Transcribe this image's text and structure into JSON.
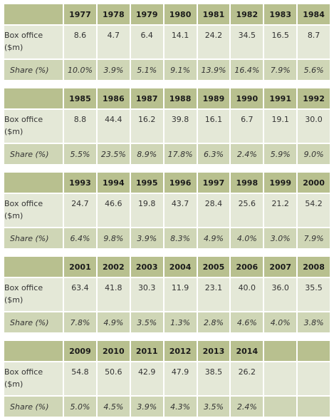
{
  "row_labels": {
    "box_office": "Box office ($m)",
    "share": "Share (%)"
  },
  "tables": [
    {
      "years": [
        "1977",
        "1978",
        "1979",
        "1980",
        "1981",
        "1982",
        "1983",
        "1984"
      ],
      "box_office": [
        "8.6",
        "4.7",
        "6.4",
        "14.1",
        "24.2",
        "34.5",
        "16.5",
        "8.7"
      ],
      "share": [
        "10.0%",
        "3.9%",
        "5.1%",
        "9.1%",
        "13.9%",
        "16.4%",
        "7.9%",
        "5.6%"
      ]
    },
    {
      "years": [
        "1985",
        "1986",
        "1987",
        "1988",
        "1989",
        "1990",
        "1991",
        "1992"
      ],
      "box_office": [
        "8.8",
        "44.4",
        "16.2",
        "39.8",
        "16.1",
        "6.7",
        "19.1",
        "30.0"
      ],
      "share": [
        "5.5%",
        "23.5%",
        "8.9%",
        "17.8%",
        "6.3%",
        "2.4%",
        "5.9%",
        "9.0%"
      ]
    },
    {
      "years": [
        "1993",
        "1994",
        "1995",
        "1996",
        "1997",
        "1998",
        "1999",
        "2000"
      ],
      "box_office": [
        "24.7",
        "46.6",
        "19.8",
        "43.7",
        "28.4",
        "25.6",
        "21.2",
        "54.2"
      ],
      "share": [
        "6.4%",
        "9.8%",
        "3.9%",
        "8.3%",
        "4.9%",
        "4.0%",
        "3.0%",
        "7.9%"
      ]
    },
    {
      "years": [
        "2001",
        "2002",
        "2003",
        "2004",
        "2005",
        "2006",
        "2007",
        "2008"
      ],
      "box_office": [
        "63.4",
        "41.8",
        "30.3",
        "11.9",
        "23.1",
        "40.0",
        "36.0",
        "35.5"
      ],
      "share": [
        "7.8%",
        "4.9%",
        "3.5%",
        "1.3%",
        "2.8%",
        "4.6%",
        "4.0%",
        "3.8%"
      ]
    },
    {
      "years": [
        "2009",
        "2010",
        "2011",
        "2012",
        "2013",
        "2014",
        "",
        ""
      ],
      "box_office": [
        "54.8",
        "50.6",
        "42.9",
        "47.9",
        "38.5",
        "26.2",
        "",
        ""
      ],
      "share": [
        "5.0%",
        "4.5%",
        "3.9%",
        "4.3%",
        "3.5%",
        "2.4%",
        "",
        ""
      ]
    }
  ],
  "colors": {
    "header": "#b8c08f",
    "body": "#e4e8d7",
    "share_row": "#cfd6b6"
  }
}
